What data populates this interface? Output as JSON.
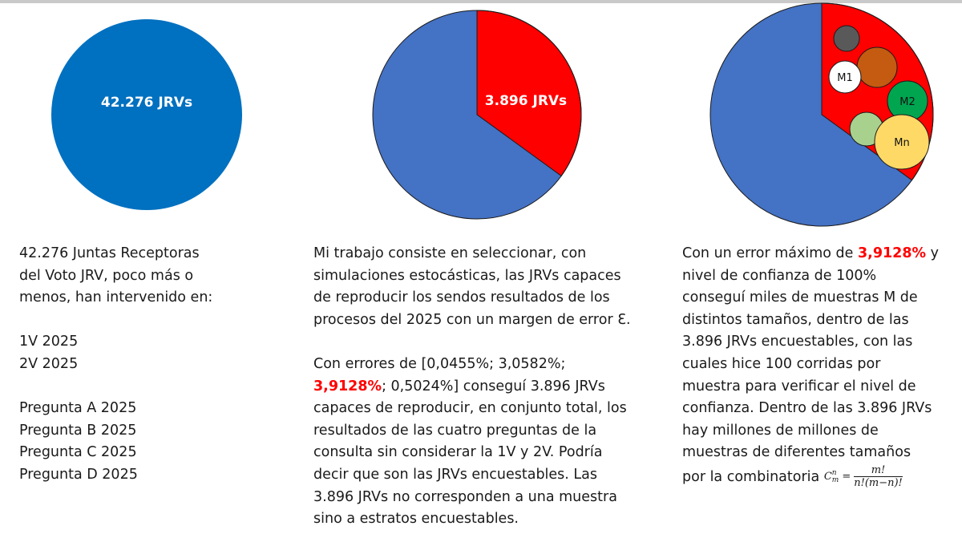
{
  "colors": {
    "pie1": "#0070c0",
    "pie_blue": "#4472c4",
    "pie_red": "#ff0000",
    "highlight": "#ff0000",
    "circle_dark": "#595959",
    "circle_brown": "#c55a11",
    "circle_green": "#00a550",
    "circle_lightgreen": "#a9d18e",
    "circle_yellow": "#ffd966",
    "circle_white": "#ffffff"
  },
  "pies": {
    "pie1": {
      "label": "42.276 JRVs",
      "total": 42276
    },
    "pie2": {
      "label": "3.896 JRVs",
      "red_fraction": 0.35
    },
    "pie3": {
      "red_fraction": 0.35,
      "circles": {
        "m1": "M1",
        "m2": "M2",
        "mn": "Mn"
      }
    }
  },
  "col1": {
    "lines": [
      "42.276 Juntas Receptoras",
      "del Voto JRV, poco más o",
      "menos, han intervenido en:",
      "",
      "1V 2025",
      "2V 2025",
      "",
      "Pregunta A 2025",
      "Pregunta B 2025",
      "Pregunta C 2025",
      "Pregunta D 2025"
    ]
  },
  "col2": {
    "lines": [
      "Mi trabajo consiste en seleccionar, con",
      "simulaciones estocásticas, las JRVs capaces",
      "de reproducir los sendos resultados de los",
      "procesos del 2025 con un margen de error Ɛ.",
      "",
      "Con errores de [0,0455%; 3,0582%;"
    ],
    "line7_highlight": "3,9128%",
    "line7_rest": "; 0,5024%] conseguí 3.896 JRVs",
    "lines_after": [
      "capaces de reproducir, en conjunto total, los",
      "resultados de las cuatro preguntas de la",
      "consulta sin considerar la 1V y 2V. Podría",
      "decir que son las JRVs encuestables. Las",
      "3.896 JRVs no corresponden a una muestra",
      "sino a estratos encuestables."
    ]
  },
  "col3": {
    "line1_pre": "Con un error máximo de ",
    "line1_highlight": "3,9128%",
    "line1_post": " y",
    "lines": [
      "nivel de confianza de 100%",
      "conseguí miles de muestras M de",
      "distintos tamaños, dentro de las",
      "3.896 JRVs encuestables, con las",
      "cuales hice 100 corridas por",
      "muestra para verificar el nivel de",
      "confianza. Dentro de las 3.896 JRVs",
      "hay millones de millones de",
      "muestras de diferentes tamaños"
    ],
    "last_line_text": "por la combinatoria",
    "formula": {
      "c": "C",
      "sup": "n",
      "sub": "m",
      "eq": "=",
      "numerator": "m!",
      "denominator": "n!(m−n)!"
    }
  }
}
